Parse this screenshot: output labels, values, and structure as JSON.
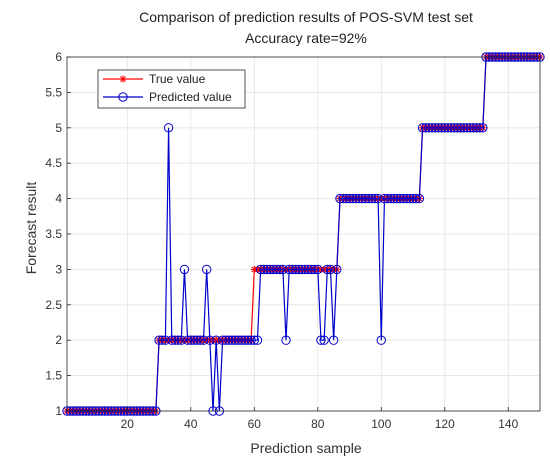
{
  "chart_data": {
    "type": "line",
    "title": "Comparison of prediction results of POS-SVM test set",
    "subtitle": "Accuracy rate=92%",
    "xlabel": "Prediction sample",
    "ylabel": "Forecast result",
    "xlim": [
      1,
      150
    ],
    "ylim": [
      1,
      6
    ],
    "xticks": [
      20,
      40,
      60,
      80,
      100,
      120,
      140
    ],
    "yticks": [
      1,
      1.5,
      2,
      2.5,
      3,
      3.5,
      4,
      4.5,
      5,
      5.5,
      6
    ],
    "grid": true,
    "legend_position": "top-left",
    "series": [
      {
        "name": "True value",
        "color": "#ff0000",
        "marker": "asterisk",
        "segments": [
          {
            "from": 1,
            "to": 29,
            "value": 1
          },
          {
            "from": 30,
            "to": 59,
            "value": 2
          },
          {
            "from": 60,
            "to": 86,
            "value": 3
          },
          {
            "from": 87,
            "to": 112,
            "value": 4
          },
          {
            "from": 113,
            "to": 132,
            "value": 5
          },
          {
            "from": 133,
            "to": 150,
            "value": 6
          }
        ]
      },
      {
        "name": "Predicted value",
        "color": "#0000cc",
        "marker": "circle",
        "segments": [
          {
            "from": 1,
            "to": 29,
            "value": 1
          },
          {
            "from": 30,
            "to": 60,
            "value": 2
          },
          {
            "from": 61,
            "to": 86,
            "value": 3
          },
          {
            "from": 87,
            "to": 112,
            "value": 4
          },
          {
            "from": 113,
            "to": 132,
            "value": 5
          },
          {
            "from": 133,
            "to": 150,
            "value": 6
          }
        ],
        "overrides": [
          {
            "x": 33,
            "value": 5
          },
          {
            "x": 38,
            "value": 3
          },
          {
            "x": 45,
            "value": 3
          },
          {
            "x": 47,
            "value": 1
          },
          {
            "x": 49,
            "value": 1
          },
          {
            "x": 61,
            "value": 2
          },
          {
            "x": 70,
            "value": 2
          },
          {
            "x": 81,
            "value": 2
          },
          {
            "x": 82,
            "value": 2
          },
          {
            "x": 85,
            "value": 2
          },
          {
            "x": 100,
            "value": 2
          }
        ]
      }
    ]
  }
}
